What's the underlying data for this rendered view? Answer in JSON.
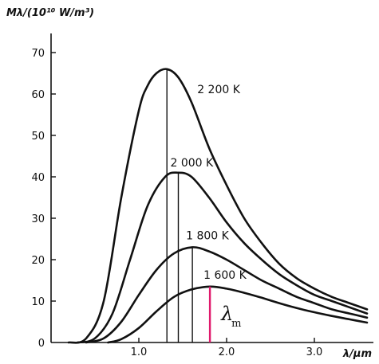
{
  "chart_data": {
    "type": "line",
    "ylabel": "Mλ/(10¹⁰ W/m³)",
    "xlabel": "λ/μm",
    "xlim": [
      0,
      3.8
    ],
    "ylim": [
      0,
      72
    ],
    "x_ticks": [
      {
        "value": 1.0,
        "label": "1.0"
      },
      {
        "value": 2.0,
        "label": "2.0"
      },
      {
        "value": 3.0,
        "label": "3.0"
      }
    ],
    "y_ticks": [
      {
        "value": 0,
        "label": "0"
      },
      {
        "value": 10,
        "label": "10"
      },
      {
        "value": 20,
        "label": "20"
      },
      {
        "value": 30,
        "label": "30"
      },
      {
        "value": 40,
        "label": "40"
      },
      {
        "value": 50,
        "label": "50"
      },
      {
        "value": 60,
        "label": "60"
      },
      {
        "value": 70,
        "label": "70"
      }
    ],
    "series": [
      {
        "name": "2 200 K",
        "temperature": 2200,
        "peak_x": 1.32,
        "peak_y": 66,
        "x": [
          0.2,
          0.4,
          0.6,
          0.8,
          1.0,
          1.1,
          1.2,
          1.32,
          1.45,
          1.6,
          1.8,
          2.0,
          2.2,
          2.4,
          2.6,
          2.8,
          3.0,
          3.2,
          3.4,
          3.6
        ],
        "y": [
          0,
          1,
          10,
          35,
          56,
          62,
          65,
          66,
          64,
          58,
          47,
          38,
          30,
          24,
          19,
          15.5,
          13,
          11,
          9.5,
          8
        ]
      },
      {
        "name": "2 000 K",
        "temperature": 2000,
        "peak_x": 1.45,
        "peak_y": 41,
        "x": [
          0.3,
          0.5,
          0.7,
          0.9,
          1.1,
          1.3,
          1.45,
          1.6,
          1.8,
          2.0,
          2.2,
          2.4,
          2.6,
          2.8,
          3.0,
          3.2,
          3.4,
          3.6
        ],
        "y": [
          0,
          1,
          7,
          20,
          33,
          40,
          41,
          40,
          35,
          29,
          24,
          20,
          16.5,
          13.8,
          11.5,
          10,
          8.5,
          7
        ]
      },
      {
        "name": "1 800 K",
        "temperature": 1800,
        "peak_x": 1.61,
        "peak_y": 23,
        "x": [
          0.4,
          0.6,
          0.8,
          1.0,
          1.2,
          1.4,
          1.61,
          1.8,
          2.0,
          2.2,
          2.4,
          2.6,
          2.8,
          3.0,
          3.2,
          3.4,
          3.6
        ],
        "y": [
          0,
          1,
          5,
          11.5,
          17.5,
          21.5,
          23,
          22,
          20,
          17.5,
          15,
          13,
          11,
          9.5,
          8,
          7,
          6
        ]
      },
      {
        "name": "1 600 K",
        "temperature": 1600,
        "peak_x": 1.81,
        "peak_y": 13.5,
        "x": [
          0.65,
          0.8,
          1.0,
          1.2,
          1.4,
          1.6,
          1.81,
          2.0,
          2.2,
          2.4,
          2.6,
          2.8,
          3.0,
          3.2,
          3.4,
          3.6
        ],
        "y": [
          0,
          0.8,
          3.5,
          7.5,
          11,
          12.8,
          13.5,
          13,
          12,
          10.8,
          9.5,
          8.3,
          7.3,
          6.4,
          5.6,
          4.8
        ]
      }
    ],
    "annotation": {
      "label": "λ",
      "subscript": "m",
      "x": 1.81,
      "color": "#e0196c"
    },
    "legend": "inline-labels"
  }
}
